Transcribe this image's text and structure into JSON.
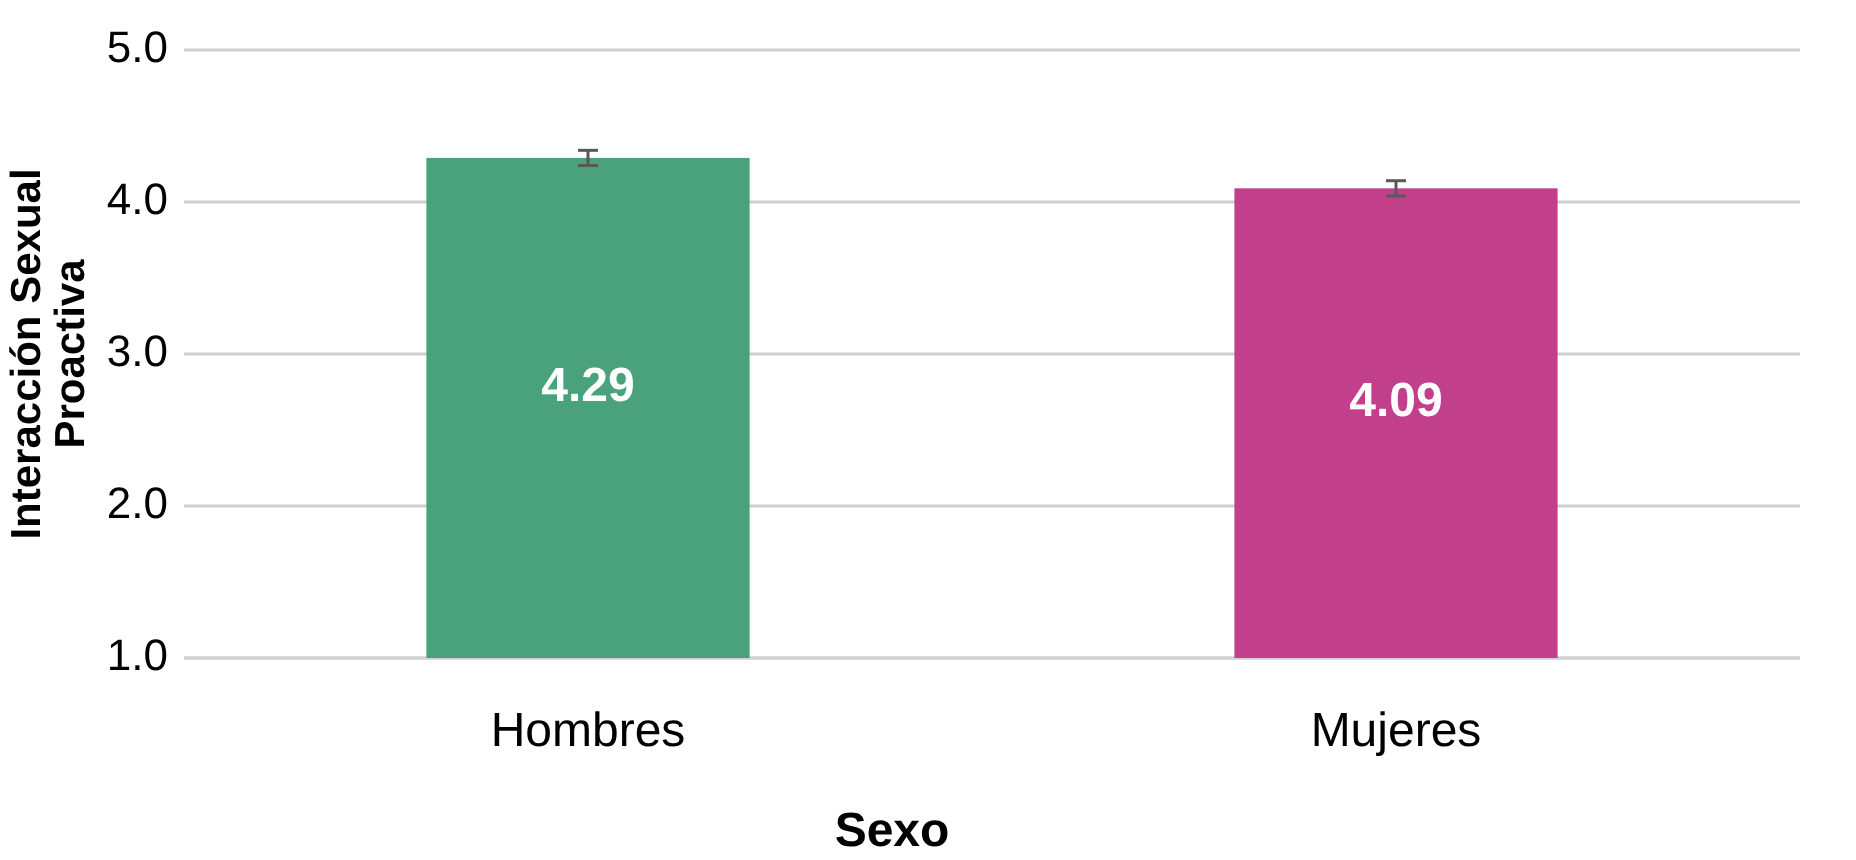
{
  "chart_data": {
    "type": "bar",
    "xlabel": "Sexo",
    "ylabel": "Interacción Sexual Proactiva",
    "categories": [
      "Hombres",
      "Mujeres"
    ],
    "values": [
      4.29,
      4.09
    ],
    "colors": [
      "#49a27b",
      "#c13f8b"
    ],
    "errors": [
      0.05,
      0.05
    ],
    "ylim": [
      1,
      5
    ],
    "yticks": [
      {
        "value": 1,
        "label": "1.0"
      },
      {
        "value": 2,
        "label": "2.0"
      },
      {
        "value": 3,
        "label": "3.0"
      },
      {
        "value": 4,
        "label": "4.0"
      },
      {
        "value": 5,
        "label": "5.0"
      }
    ],
    "grid": "y",
    "data_labels": true
  }
}
